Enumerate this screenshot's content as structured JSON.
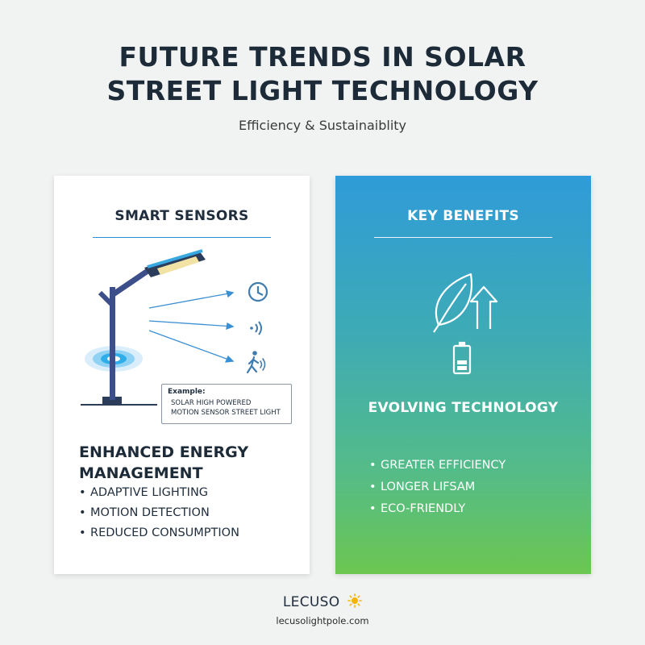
{
  "header": {
    "title_line1": "FUTURE TRENDS IN SOLAR",
    "title_line2": "STREET LIGHT TECHNOLOGY",
    "subtitle": "Efficiency & Sustainaiblity"
  },
  "left_card": {
    "heading": "SMART SENSORS",
    "example_label": "Example:",
    "example_line1": "SOLAR HIGH POWERED",
    "example_line2": "MOTION SENSOR STREET LIGHT",
    "section_title_line1": "ENHANCED ENERGY",
    "section_title_line2": "MANAGEMENT",
    "bullets": [
      "ADAPTIVE LIGHTING",
      "MOTION DETECTION",
      "REDUCED CONSUMPTION"
    ],
    "icons": [
      "street-light-icon",
      "clock-icon",
      "wireless-signal-icon",
      "walking-person-icon"
    ]
  },
  "right_card": {
    "heading": "KEY BENEFITS",
    "subheading": "EVOLVING TECHNOLOGY",
    "bullets": [
      "GREATER EFFICIENCY",
      "LONGER LIFSAM",
      "ECO-FRIENDLY"
    ],
    "icons": [
      "leaf-icon",
      "arrow-up-icon",
      "battery-icon"
    ]
  },
  "footer": {
    "brand": "LECUSO",
    "url": "lecusolightpole.com",
    "icon": "sun-icon"
  },
  "colors": {
    "background": "#f1f2f2",
    "title": "#1d2a38",
    "accent_blue": "#2b8fd1",
    "gradient_top": "#2f9bd8",
    "gradient_bottom": "#6cc651",
    "sun": "#f4b400"
  }
}
